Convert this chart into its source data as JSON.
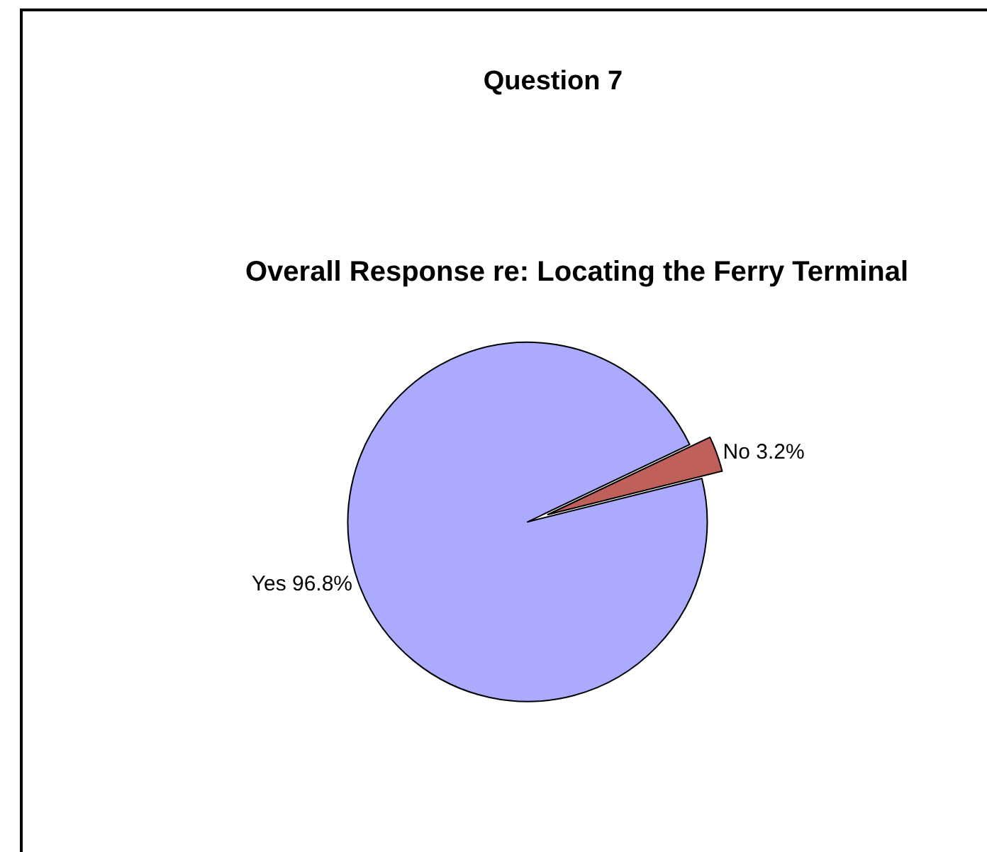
{
  "chart_data": {
    "type": "pie",
    "title": "Question 7",
    "subtitle": "Overall Response re: Locating the Ferry Terminal",
    "categories": [
      "Yes",
      "No"
    ],
    "values": [
      96.8,
      3.2
    ],
    "colors": [
      "#aaaaff",
      "#c0605a"
    ],
    "value_labels": [
      "96.8%",
      "3.2%"
    ],
    "legend": false
  }
}
